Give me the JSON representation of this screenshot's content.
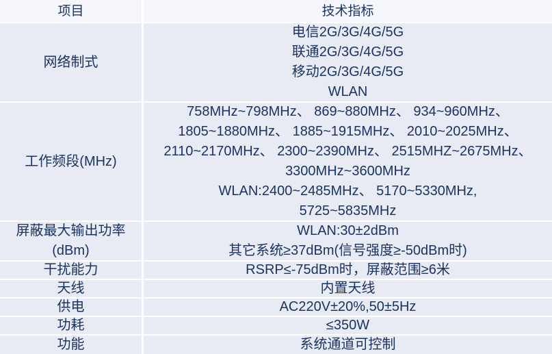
{
  "table": {
    "header": {
      "item": "项目",
      "spec": "技术指标"
    },
    "rows": [
      {
        "item_lines": [
          "网络制式"
        ],
        "spec_lines": [
          "电信2G/3G/4G/5G",
          "联通2G/3G/4G/5G",
          "移动2G/3G/4G/5G",
          "WLAN"
        ]
      },
      {
        "item_lines": [
          "工作频段(MHz)"
        ],
        "spec_lines": [
          "758MHz~798MHz、 869~880MHz、 934~960MHz、",
          "1805~1880MHz、 1885~1915MHz、 2010~2025MHz、",
          "2110~2170MHz、 2300~2390MHz、 2515MHZ~2675MHz、",
          "3300MHz~3600MHz",
          "WLAN:2400~2485MHz、 5170~5330MHz,",
          "5725~5835MHz"
        ]
      },
      {
        "item_lines": [
          "屏蔽最大输出功率",
          "(dBm)"
        ],
        "spec_lines": [
          "WLAN:30±2dBm",
          "其它系统≥37dBm(信号强度≥-50dBm时)"
        ]
      },
      {
        "item_lines": [
          "干扰能力"
        ],
        "spec_lines": [
          "RSRP≤-75dBm时，屏蔽范围≥6米"
        ]
      },
      {
        "item_lines": [
          "天线"
        ],
        "spec_lines": [
          "内置天线"
        ]
      },
      {
        "item_lines": [
          "供电"
        ],
        "spec_lines": [
          "AC220V±20%,50±5Hz"
        ]
      },
      {
        "item_lines": [
          "功耗"
        ],
        "spec_lines": [
          "≤350W"
        ]
      },
      {
        "item_lines": [
          "功能"
        ],
        "spec_lines": [
          "系统通道可控制"
        ]
      }
    ],
    "colors": {
      "header_bg": "#F4F6FB",
      "row_bg": "#E8EAF4",
      "divider": "#FFFFFF",
      "text": "#1A3462"
    }
  }
}
